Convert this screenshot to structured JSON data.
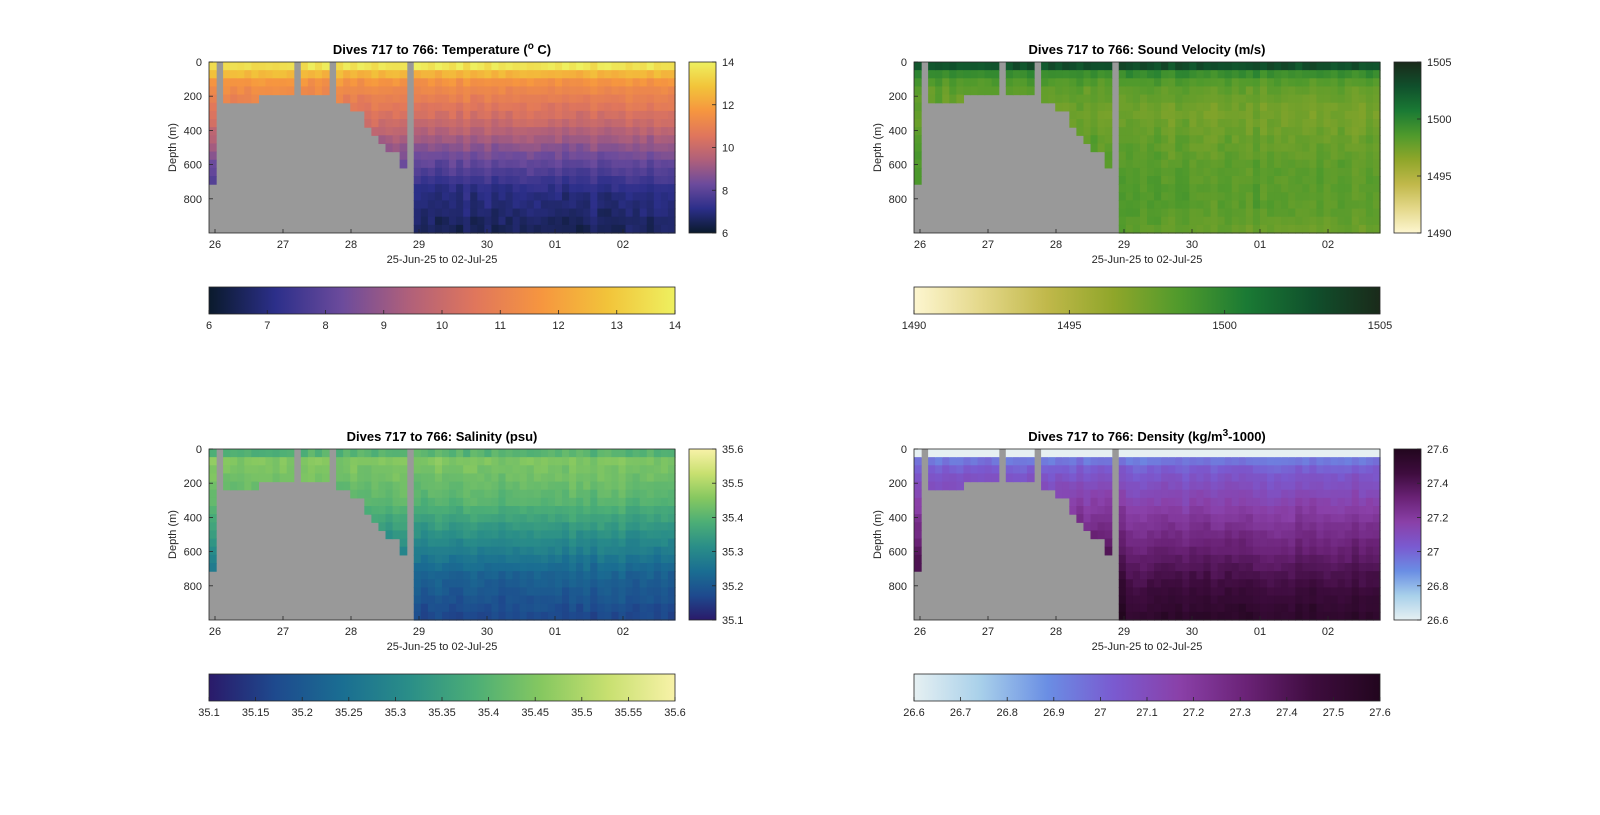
{
  "figure": {
    "background": "#ffffff",
    "terrain_color": "#999999",
    "depth_label": "Depth (m)",
    "date_label": "25-Jun-25 to 02-Jul-25"
  },
  "chart_data": [
    {
      "type": "heatmap",
      "variable": "temperature",
      "title": "Dives 717 to 766: Temperature (",
      "title_sup": "o",
      "title_tail": " C)",
      "xlabel": "25-Jun-25 to 02-Jul-25",
      "ylabel": "Depth (m)",
      "x_ticks": [
        "26",
        "27",
        "28",
        "29",
        "30",
        "01",
        "02"
      ],
      "y_ticks": [
        "0",
        "200",
        "400",
        "600",
        "800"
      ],
      "ylim": [
        0,
        1000
      ],
      "grid": false,
      "clim": [
        6,
        14
      ],
      "colorbar_side_ticks": [
        "6",
        "8",
        "10",
        "12",
        "14"
      ],
      "colorbar_bottom_ticks": [
        "6",
        "7",
        "8",
        "9",
        "10",
        "11",
        "12",
        "13",
        "14"
      ],
      "colormap": [
        "#0a1a2c",
        "#2c2f8a",
        "#6c4b9c",
        "#b0607a",
        "#e0765c",
        "#f6963f",
        "#f2c43a",
        "#eef060"
      ],
      "profile_surface": [
        14,
        12.5,
        11.6,
        11.2,
        10.9,
        10.6,
        10.3,
        10.0,
        9.6,
        9.2,
        8.8,
        8.4,
        8.1,
        7.8,
        7.5,
        7.2,
        7.0,
        6.9,
        6.8,
        6.7,
        6.6
      ]
    },
    {
      "type": "heatmap",
      "variable": "sound_velocity",
      "title": "Dives 717 to 766: Sound Velocity (m/s)",
      "xlabel": "25-Jun-25 to 02-Jul-25",
      "ylabel": "Depth (m)",
      "x_ticks": [
        "26",
        "27",
        "28",
        "29",
        "30",
        "01",
        "02"
      ],
      "y_ticks": [
        "0",
        "200",
        "400",
        "600",
        "800"
      ],
      "ylim": [
        0,
        1000
      ],
      "grid": false,
      "clim": [
        1490,
        1505
      ],
      "colorbar_side_ticks": [
        "1490",
        "1495",
        "1500",
        "1505"
      ],
      "colorbar_bottom_ticks": [
        "1490",
        "1495",
        "1500",
        "1505"
      ],
      "colormap": [
        "#fdf6d0",
        "#e4d88a",
        "#c0b84a",
        "#8fa62a",
        "#4f9a2c",
        "#1a7a34",
        "#10502c",
        "#1a2a1a"
      ],
      "profile_surface": [
        1503.5,
        1499.5,
        1498.5,
        1498.0,
        1497.8,
        1497.5,
        1497.4,
        1497.5,
        1497.6,
        1497.8,
        1497.9,
        1498.0,
        1498.1,
        1498.2,
        1498.2,
        1498.3,
        1498.3,
        1498.3,
        1498.2,
        1498.0,
        1497.8
      ]
    },
    {
      "type": "heatmap",
      "variable": "salinity",
      "title": "Dives 717 to 766: Salinity (psu)",
      "xlabel": "25-Jun-25 to 02-Jul-25",
      "ylabel": "Depth (m)",
      "x_ticks": [
        "26",
        "27",
        "28",
        "29",
        "30",
        "01",
        "02"
      ],
      "y_ticks": [
        "0",
        "200",
        "400",
        "600",
        "800"
      ],
      "ylim": [
        0,
        1000
      ],
      "grid": false,
      "clim": [
        35.1,
        35.6
      ],
      "colorbar_side_ticks": [
        "35.1",
        "35.2",
        "35.3",
        "35.4",
        "35.5",
        "35.6"
      ],
      "colorbar_bottom_ticks": [
        "35.1",
        "35.15",
        "35.2",
        "35.25",
        "35.3",
        "35.35",
        "35.4",
        "35.45",
        "35.5",
        "35.55",
        "35.6"
      ],
      "colormap": [
        "#2a1a6a",
        "#1e4a8e",
        "#1a6e92",
        "#2a8e88",
        "#4cae76",
        "#86c860",
        "#c8e070",
        "#f8f2a8"
      ],
      "profile_surface": [
        35.42,
        35.45,
        35.44,
        35.43,
        35.42,
        35.41,
        35.4,
        35.38,
        35.36,
        35.34,
        35.32,
        35.3,
        35.28,
        35.26,
        35.24,
        35.22,
        35.21,
        35.2,
        35.19,
        35.18,
        35.17
      ]
    },
    {
      "type": "heatmap",
      "variable": "density",
      "title": "Dives 717 to 766: Density (kg/m",
      "title_sup": "3",
      "title_tail": "-1000)",
      "xlabel": "25-Jun-25 to 02-Jul-25",
      "ylabel": "Depth (m)",
      "x_ticks": [
        "26",
        "27",
        "28",
        "29",
        "30",
        "01",
        "02"
      ],
      "y_ticks": [
        "0",
        "200",
        "400",
        "600",
        "800"
      ],
      "ylim": [
        0,
        1000
      ],
      "grid": false,
      "clim": [
        26.6,
        27.6
      ],
      "colorbar_side_ticks": [
        "26.6",
        "26.8",
        "27",
        "27.2",
        "27.4",
        "27.6"
      ],
      "colorbar_bottom_ticks": [
        "26.6",
        "26.7",
        "26.8",
        "26.9",
        "27",
        "27.1",
        "27.2",
        "27.3",
        "27.4",
        "27.5",
        "27.6"
      ],
      "colormap": [
        "#e6f0f2",
        "#a8d0ea",
        "#6a8ee4",
        "#7a5ad0",
        "#8a40a8",
        "#6a2276",
        "#3e0c3e",
        "#22061e"
      ],
      "profile_surface": [
        26.6,
        26.95,
        27.02,
        27.06,
        27.09,
        27.12,
        27.15,
        27.18,
        27.21,
        27.24,
        27.27,
        27.3,
        27.33,
        27.36,
        27.39,
        27.42,
        27.45,
        27.48,
        27.5,
        27.52,
        27.54
      ]
    }
  ]
}
